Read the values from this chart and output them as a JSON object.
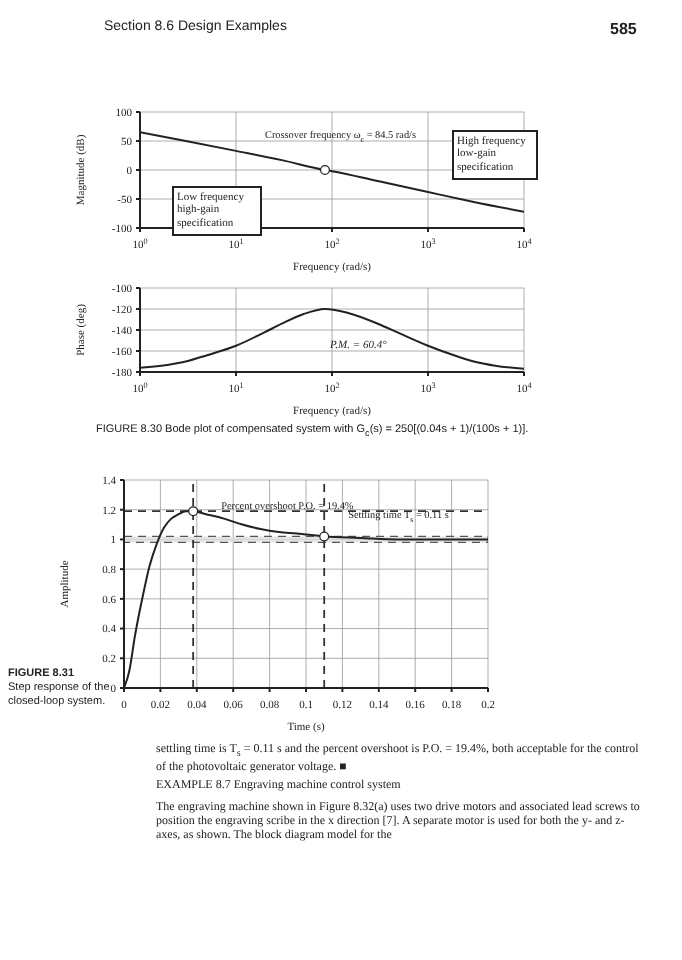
{
  "chart_data": [
    {
      "type": "line",
      "xlabel": "Frequency (rad/s)",
      "ylabel": "Magnitude (dB)",
      "log": "x",
      "grid": true,
      "x": [
        1,
        3,
        10,
        30,
        84.5,
        100,
        300,
        1000,
        3000,
        10000
      ],
      "series": [
        {
          "color": "#222222",
          "values": [
            65,
            50,
            33,
            17,
            0,
            -2,
            -19,
            -38,
            -55,
            -72
          ]
        }
      ],
      "xlim": [
        1,
        10000
      ],
      "xticks": [
        {
          "value": 1,
          "label": "10$^{0}$"
        },
        {
          "value": 10,
          "label": "10$^{1}$"
        },
        {
          "value": 100,
          "label": "10$^{2}$"
        },
        {
          "value": 1000,
          "label": "10$^{3}$"
        },
        {
          "value": 10000,
          "label": "10$^{4}$"
        }
      ],
      "ylim": [
        -100,
        100
      ],
      "yticks": [
        -100,
        -50,
        0,
        50,
        100
      ],
      "annotations": [
        "Section 8.6   Design Examples",
        "585",
        {
          "text": "Crossover frequency ω$_{c}$ = 84.5 rad/s",
          "x": 84.5,
          "y": 0
        },
        "High frequency low-gain specification",
        "Low frequency high-gain specification"
      ]
    },
    {
      "type": "line",
      "xlabel": "Frequency (rad/s)",
      "ylabel": "Phase (deg)",
      "log": "x",
      "grid": true,
      "x": [
        1,
        2,
        3,
        5,
        10,
        20,
        30,
        50,
        84.5,
        150,
        300,
        500,
        1000,
        2000,
        3000,
        5000,
        10000
      ],
      "series": [
        {
          "color": "#222222",
          "values": [
            -176,
            -173,
            -170,
            -164,
            -155,
            -142,
            -134,
            -125,
            -120,
            -124,
            -134,
            -143,
            -155,
            -165,
            -170,
            -174,
            -177
          ]
        }
      ],
      "xlim": [
        1,
        10000
      ],
      "xticks": [
        {
          "value": 1,
          "label": "10$^{0}$"
        },
        {
          "value": 10,
          "label": "10$^{1}$"
        },
        {
          "value": 100,
          "label": "10$^{2}$"
        },
        {
          "value": 1000,
          "label": "10$^{3}$"
        },
        {
          "value": 10000,
          "label": "10$^{4}$"
        }
      ],
      "ylim": [
        -180,
        -100
      ],
      "yticks": [
        -180,
        -160,
        -140,
        -120,
        -100
      ],
      "annotations": [
        "P.M. = 60.4°",
        "FIGURE 8.30   Bode plot of compensated system with G$_{c}$(s) = 250[(0.04s + 1)/(100s + 1)]."
      ]
    },
    {
      "type": "line",
      "xlabel": "Time (s)",
      "ylabel": "Amplitude",
      "grid": true,
      "x": [
        0,
        0.003,
        0.006,
        0.01,
        0.014,
        0.018,
        0.022,
        0.026,
        0.03,
        0.034,
        0.038,
        0.045,
        0.055,
        0.065,
        0.075,
        0.085,
        0.095,
        0.11,
        0.13,
        0.15,
        0.17,
        0.2
      ],
      "series": [
        {
          "color": "#222222",
          "values": [
            0,
            0.12,
            0.35,
            0.6,
            0.82,
            0.97,
            1.08,
            1.14,
            1.17,
            1.19,
            1.19,
            1.17,
            1.14,
            1.1,
            1.07,
            1.05,
            1.04,
            1.02,
            1.01,
            1.0,
            1.0,
            1.0
          ]
        }
      ],
      "xlim": [
        0,
        0.2
      ],
      "xticks": [
        0,
        0.02,
        0.04,
        0.06,
        0.08,
        0.1,
        0.12,
        0.14,
        0.16,
        0.18,
        0.2
      ],
      "ylim": [
        0,
        1.4
      ],
      "yticks": [
        0,
        0.2,
        0.4,
        0.6,
        0.8,
        1,
        1.2,
        1.4
      ],
      "ref_lines": [
        {
          "axis": "y",
          "value": 1.19,
          "line_style": "dashed"
        },
        {
          "axis": "x",
          "value": 0.038,
          "line_style": "dashed"
        },
        {
          "axis": "x",
          "value": 0.11,
          "line_style": "dashed"
        }
      ],
      "bands": [
        {
          "axis": "y",
          "from": 0.98,
          "to": 1.02,
          "color": "#dddddd"
        }
      ],
      "annotations": [
        {
          "text": "Percent overshoot P.O. = 19.4%",
          "x": 0.038,
          "y": 1.19
        },
        {
          "text": "Settling time T$_{s}$ = 0.11 s",
          "x": 0.11,
          "y": 1.02
        },
        "FIGURE 8.31",
        "Step response of the closed-loop system.",
        "settling time is T$_{s}$ = 0.11 s and the percent overshoot is P.O. = 19.4%, both acceptable for the control of the photovoltaic generator voltage. ■",
        "EXAMPLE 8.7   Engraving machine control system",
        "The engraving machine shown in Figure 8.32(a) uses two drive motors and associated lead screws to position the engraving scribe in the x direction [7]. A separate motor is used for both the y- and z-axes, as shown. The block diagram model for the"
      ]
    }
  ]
}
